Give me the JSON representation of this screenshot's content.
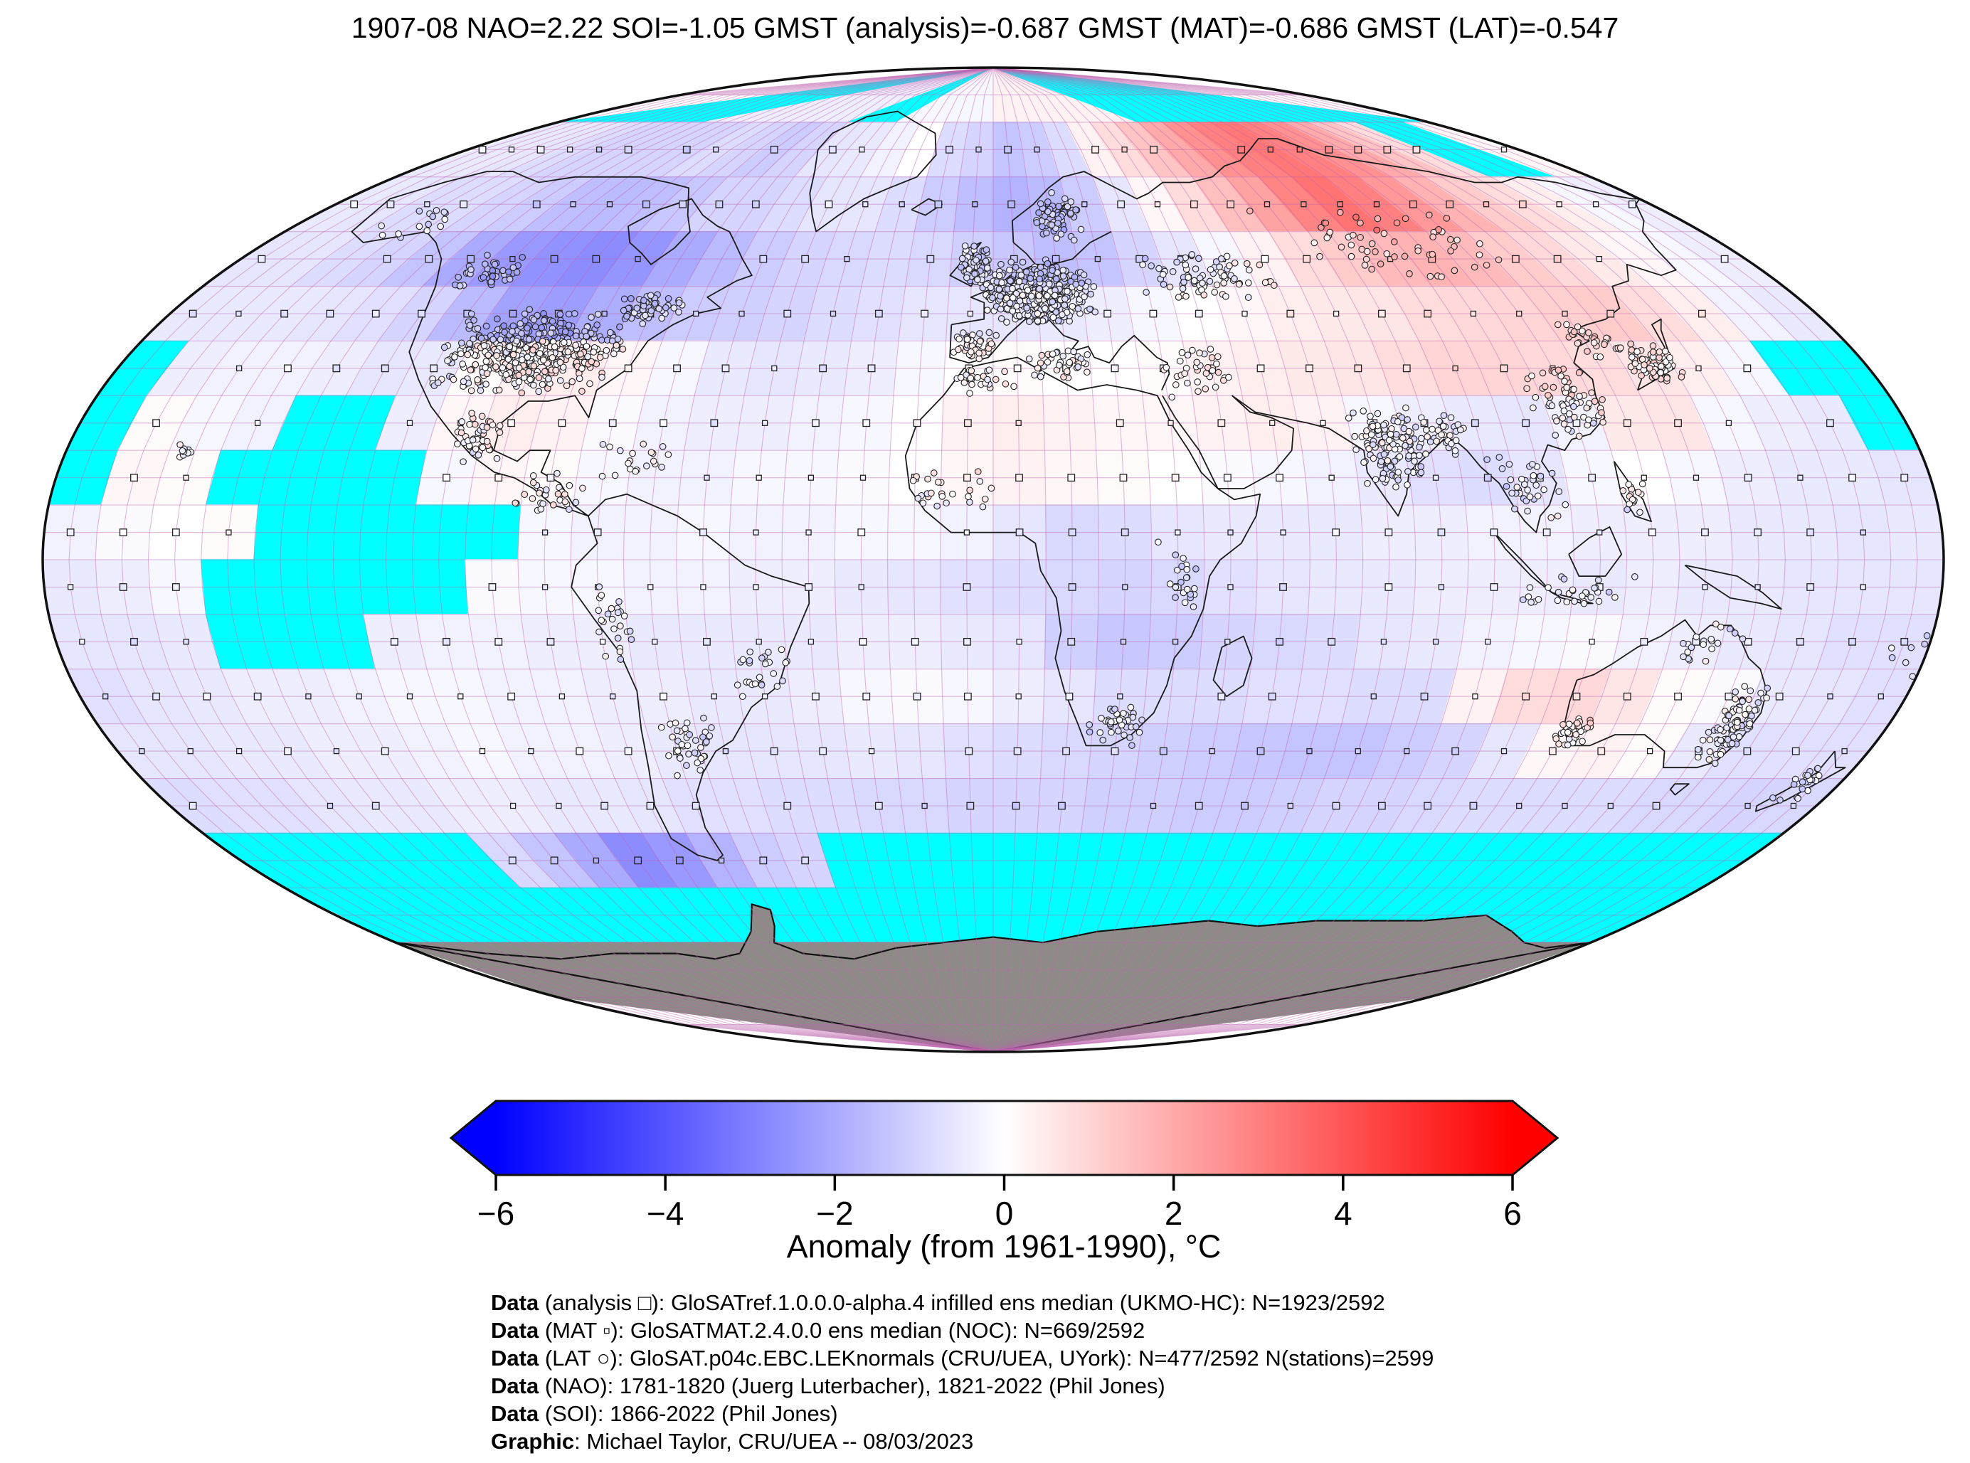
{
  "title": "1907-08 NAO=2.22 SOI=-1.05 GMST (analysis)=-0.687 GMST (MAT)=-0.686 GMST (LAT)=-0.547",
  "map": {
    "missing_color": "#00ffff",
    "land_no_data_color": "#8d8a87",
    "graticule_color": "rgba(190,100,175,0.45)",
    "coast_color": "#1a1a1a",
    "outline_color": "#111111",
    "grid_deg": 10,
    "sub_grid_deg": 5
  },
  "chart_data": {
    "type": "heatmap",
    "title": "1907-08 NAO=2.22 SOI=-1.05 GMST (analysis)=-0.687 GMST (MAT)=-0.686 GMST (LAT)=-0.547",
    "period": "1907-08",
    "indices": {
      "NAO": 2.22,
      "SOI": -1.05
    },
    "gmst": {
      "analysis": -0.687,
      "MAT": -0.686,
      "LAT": -0.547
    },
    "projection": "global pseudo-cylindrical ellipse, 5-degree graticule",
    "grid": {
      "cell_deg": 10,
      "lon_start": -180,
      "lat_start": 90,
      "cols": 36,
      "rows": 18,
      "missing_code": "m",
      "land_no_data_code": "g"
    },
    "colorbar": {
      "label": "Anomaly (from 1961-1990), °C",
      "range": [
        -6,
        6
      ],
      "ticks": [
        -6,
        -4,
        -2,
        0,
        2,
        4,
        6
      ],
      "colormap": "blue-white-red",
      "missing_color": "#00ffff",
      "land_color": "#8d8a87"
    },
    "counts": {
      "analysis": "N=1923/2592",
      "MAT": "N=669/2592",
      "LAT": "N=477/2592",
      "stations": 2599
    },
    "values": [
      [
        "m",
        "m",
        "m",
        "m",
        "m",
        "m",
        -0.4,
        -0.4,
        -0.4,
        -0.4,
        -0.4,
        -0.4,
        "m",
        "m",
        -0.2,
        -0.2,
        -0.2,
        -0.2,
        0.3,
        0.3,
        0.3,
        0.3,
        0.3,
        0.3,
        "m",
        "m",
        "m",
        "m",
        "m",
        "m",
        "m",
        "m",
        "m",
        "m",
        "m",
        "m"
      ],
      [
        -0.5,
        -0.5,
        -0.6,
        -0.8,
        -1.0,
        -1.0,
        -1.0,
        -1.0,
        -0.8,
        -1.0,
        -1.2,
        -1.0,
        -0.6,
        -0.5,
        -0.3,
        0.0,
        -0.8,
        -1.0,
        -1.4,
        -1.2,
        -0.8,
        0.3,
        0.8,
        1.4,
        2.0,
        2.6,
        3.0,
        3.2,
        3.0,
        2.6,
        2.0,
        1.4,
        0.8,
        "m",
        "m",
        0.2
      ],
      [
        -0.5,
        -0.6,
        -0.8,
        -0.8,
        -1.0,
        -1.2,
        -1.5,
        -1.6,
        -1.5,
        -1.3,
        -1.0,
        -1.0,
        -0.8,
        -0.6,
        -0.6,
        -0.8,
        -1.2,
        -1.5,
        -1.8,
        -1.6,
        -1.2,
        -0.6,
        0.2,
        0.8,
        1.5,
        2.2,
        2.9,
        3.3,
        3.0,
        2.4,
        1.8,
        1.2,
        0.8,
        0.4,
        -0.2,
        -0.4
      ],
      [
        -0.6,
        -0.6,
        -0.8,
        -1.0,
        -1.4,
        -2.0,
        -2.4,
        -2.6,
        -2.7,
        -2.5,
        -2.0,
        -1.6,
        -1.2,
        -1.0,
        -0.9,
        -0.8,
        -0.9,
        -1.1,
        -1.3,
        -1.5,
        -1.4,
        -1.0,
        -0.6,
        -0.2,
        0.3,
        0.8,
        1.2,
        1.6,
        1.8,
        1.6,
        1.2,
        0.9,
        0.5,
        0.2,
        -0.2,
        -0.4
      ],
      [
        -0.5,
        -0.5,
        -0.5,
        -0.6,
        -0.7,
        -1.0,
        -1.6,
        -2.2,
        -2.3,
        -1.9,
        -1.5,
        -1.2,
        -1.1,
        -1.0,
        -0.8,
        -0.7,
        -0.6,
        -0.6,
        -0.6,
        -0.5,
        -0.4,
        -0.2,
        0.0,
        0.2,
        0.4,
        0.5,
        0.6,
        0.8,
        0.9,
        1.0,
        1.1,
        1.2,
        0.8,
        0.4,
        -0.3,
        -0.5
      ],
      [
        "m",
        -0.4,
        -0.3,
        -0.3,
        -0.4,
        -0.6,
        -0.5,
        0.1,
        0.3,
        0.4,
        0.2,
        -0.2,
        -0.5,
        -0.6,
        -0.5,
        -0.4,
        -0.2,
        0.0,
        0.1,
        0.0,
        0.0,
        0.1,
        0.3,
        0.4,
        0.5,
        0.6,
        0.8,
        1.0,
        1.0,
        0.9,
        0.8,
        0.6,
        0.4,
        -0.2,
        "m",
        "m"
      ],
      [
        "m",
        0.1,
        -0.2,
        -0.3,
        "m",
        "m",
        -0.4,
        0.2,
        0.4,
        0.3,
        -0.1,
        -0.3,
        -0.4,
        -0.4,
        -0.3,
        -0.2,
        0.0,
        0.3,
        0.4,
        0.3,
        0.2,
        0.2,
        0.3,
        0.4,
        0.3,
        -0.2,
        -0.4,
        -0.5,
        -0.6,
        -0.3,
        0.5,
        0.6,
        -0.2,
        -0.4,
        -0.5,
        "m"
      ],
      [
        "m",
        0.2,
        0.1,
        "m",
        "m",
        "m",
        "m",
        -0.2,
        0.2,
        0.1,
        -0.2,
        -0.3,
        -0.3,
        -0.2,
        -0.2,
        -0.1,
        0.0,
        0.2,
        0.3,
        0.2,
        0.1,
        0.0,
        -0.1,
        -0.2,
        -0.3,
        -0.5,
        -0.7,
        -0.8,
        -0.6,
        -0.2,
        0.0,
        -0.2,
        -0.4,
        -0.5,
        -0.5,
        -0.6
      ],
      [
        -0.3,
        -0.1,
        0.0,
        0.1,
        "m",
        "m",
        "m",
        "m",
        "m",
        -0.2,
        -0.3,
        -0.3,
        -0.2,
        -0.3,
        -0.3,
        -0.2,
        -0.2,
        -0.3,
        -0.6,
        -0.9,
        -0.8,
        -0.6,
        -0.5,
        -0.5,
        -0.5,
        -0.4,
        -0.4,
        -0.3,
        -0.3,
        -0.4,
        -0.4,
        -0.4,
        -0.5,
        -0.5,
        -0.6,
        -0.5
      ],
      [
        -0.5,
        -0.4,
        -0.2,
        "m",
        "m",
        "m",
        "m",
        "m",
        -0.1,
        -0.2,
        -0.2,
        -0.3,
        -0.3,
        -0.4,
        -0.4,
        -0.5,
        -0.6,
        -0.7,
        -0.8,
        -0.9,
        -1.0,
        -0.9,
        -0.7,
        -0.6,
        -0.5,
        -0.5,
        -0.4,
        -0.4,
        -0.4,
        -0.5,
        -0.4,
        -0.5,
        -0.5,
        -0.6,
        -0.6,
        -0.6
      ],
      [
        -0.6,
        -0.6,
        -0.5,
        "m",
        "m",
        "m",
        -0.4,
        -0.3,
        -0.3,
        -0.4,
        -0.4,
        -0.5,
        -0.5,
        -0.5,
        -0.5,
        -0.4,
        -0.4,
        -0.5,
        -0.6,
        -1.1,
        -1.3,
        -1.2,
        -1.0,
        -0.9,
        -0.8,
        -0.6,
        -0.5,
        -0.3,
        -0.2,
        -0.1,
        -0.3,
        -0.4,
        -0.5,
        -0.6,
        -0.7,
        -0.7
      ],
      [
        -0.7,
        -0.6,
        -0.5,
        -0.4,
        -0.4,
        -0.3,
        -0.2,
        -0.2,
        -0.3,
        -0.3,
        -0.4,
        -0.4,
        -0.5,
        -0.5,
        -0.4,
        -0.2,
        -0.1,
        -0.2,
        -0.4,
        -0.6,
        -0.8,
        -0.8,
        -0.8,
        -0.7,
        -0.7,
        -0.8,
        -0.8,
        0.3,
        0.8,
        0.9,
        0.6,
        0.1,
        -0.1,
        -0.5,
        -0.6,
        -0.7
      ],
      [
        -0.6,
        -0.6,
        -0.5,
        -0.5,
        -0.4,
        -0.4,
        -0.3,
        -0.2,
        -0.3,
        -0.3,
        -0.4,
        -0.5,
        -0.6,
        -0.6,
        -0.6,
        -0.5,
        -0.6,
        -0.7,
        -0.8,
        -0.9,
        -1.0,
        -1.1,
        -1.2,
        -1.3,
        -1.4,
        -1.4,
        -1.2,
        -1.0,
        -0.6,
        0.2,
        0.3,
        0.1,
        -0.5,
        -0.7,
        -0.7,
        -0.7
      ],
      [
        -0.8,
        -0.7,
        -0.7,
        -0.6,
        -0.5,
        -0.5,
        -0.4,
        -0.4,
        -0.5,
        -0.5,
        -0.6,
        -0.7,
        -0.7,
        -0.8,
        -0.8,
        -0.9,
        -0.9,
        -1.0,
        -1.0,
        -1.0,
        -1.1,
        -1.1,
        -1.2,
        -1.2,
        -1.1,
        -1.0,
        -1.0,
        -0.9,
        -0.8,
        -0.8,
        -0.8,
        -0.8,
        -0.9,
        -0.9,
        -1.0,
        -0.9
      ],
      [
        "m",
        "m",
        "m",
        "m",
        "m",
        "m",
        -0.9,
        -1.4,
        -2.0,
        -2.7,
        -2.4,
        -1.8,
        -1.2,
        -1.0,
        "m",
        "m",
        "m",
        "m",
        "m",
        "m",
        "m",
        "m",
        "m",
        "m",
        "m",
        "m",
        "m",
        "m",
        "m",
        "m",
        "m",
        "m",
        "m",
        "m",
        "m",
        "m"
      ],
      [
        "m",
        "m",
        "m",
        "m",
        "m",
        "m",
        "m",
        "m",
        "m",
        "m",
        "m",
        "m",
        "m",
        "m",
        "m",
        "m",
        "m",
        "m",
        "m",
        "m",
        "m",
        "m",
        "m",
        "m",
        "m",
        "m",
        "m",
        "m",
        "m",
        "m",
        "m",
        "m",
        "m",
        "m",
        "m",
        "m"
      ],
      [
        "g",
        "g",
        "g",
        "g",
        "g",
        "g",
        "g",
        "g",
        "g",
        "g",
        "g",
        "g",
        "g",
        "g",
        "g",
        "g",
        "g",
        "g",
        "g",
        "g",
        "g",
        "g",
        "g",
        "g",
        "g",
        "g",
        "g",
        "g",
        "g",
        "g",
        "g",
        "g",
        "g",
        "g",
        "g",
        "g"
      ],
      [
        "g",
        "g",
        "g",
        "g",
        "g",
        "g",
        "g",
        "g",
        "g",
        "g",
        "g",
        "g",
        "g",
        "g",
        "g",
        "g",
        "g",
        "g",
        "g",
        "g",
        "g",
        "g",
        "g",
        "g",
        "g",
        "g",
        "g",
        "g",
        "g",
        "g",
        "g",
        "g",
        "g",
        "g",
        "g",
        "g"
      ]
    ]
  },
  "station_clusters": [
    {
      "name": "us",
      "lon": -97,
      "lat": 38,
      "dlon": 20,
      "dlat": 8,
      "n": 520
    },
    {
      "name": "canada-west",
      "lon": -117,
      "lat": 52,
      "dlon": 8,
      "dlat": 4,
      "n": 40
    },
    {
      "name": "canada-east",
      "lon": -76,
      "lat": 46,
      "dlon": 8,
      "dlat": 3,
      "n": 60
    },
    {
      "name": "alaska",
      "lon": -150,
      "lat": 62,
      "dlon": 9,
      "dlat": 4,
      "n": 15
    },
    {
      "name": "mexico",
      "lon": -100,
      "lat": 22,
      "dlon": 6,
      "dlat": 5,
      "n": 45
    },
    {
      "name": "central-america",
      "lon": -85,
      "lat": 12,
      "dlon": 8,
      "dlat": 4,
      "n": 30
    },
    {
      "name": "caribbean",
      "lon": -70,
      "lat": 18,
      "dlon": 8,
      "dlat": 4,
      "n": 20
    },
    {
      "name": "south-america-west",
      "lon": -72,
      "lat": -12,
      "dlon": 4,
      "dlat": 10,
      "n": 25
    },
    {
      "name": "south-america-south",
      "lon": -62,
      "lat": -34,
      "dlon": 7,
      "dlat": 6,
      "n": 40
    },
    {
      "name": "brazil-coast",
      "lon": -45,
      "lat": -20,
      "dlon": 7,
      "dlat": 6,
      "n": 25
    },
    {
      "name": "europe",
      "lon": 10,
      "lat": 49,
      "dlon": 13,
      "dlat": 6,
      "n": 420
    },
    {
      "name": "uk-ireland",
      "lon": -4,
      "lat": 54,
      "dlon": 4,
      "dlat": 4,
      "n": 70
    },
    {
      "name": "iberia",
      "lon": -4,
      "lat": 39,
      "dlon": 5,
      "dlat": 3,
      "n": 55
    },
    {
      "name": "scandinavia",
      "lon": 17,
      "lat": 63,
      "dlon": 7,
      "dlat": 5,
      "n": 70
    },
    {
      "name": "mediterranean",
      "lon": 15,
      "lat": 36,
      "dlon": 10,
      "dlat": 3,
      "n": 40
    },
    {
      "name": "north-africa",
      "lon": -2,
      "lat": 33,
      "dlon": 7,
      "dlat": 3,
      "n": 25
    },
    {
      "name": "west-africa",
      "lon": -8,
      "lat": 12,
      "dlon": 10,
      "dlat": 5,
      "n": 25
    },
    {
      "name": "east-africa",
      "lon": 36,
      "lat": -4,
      "dlon": 5,
      "dlat": 8,
      "n": 22
    },
    {
      "name": "south-africa",
      "lon": 25,
      "lat": -30,
      "dlon": 6,
      "dlat": 4,
      "n": 40
    },
    {
      "name": "middle-east",
      "lon": 42,
      "lat": 34,
      "dlon": 9,
      "dlat": 5,
      "n": 35
    },
    {
      "name": "russia-west",
      "lon": 50,
      "lat": 52,
      "dlon": 18,
      "dlat": 5,
      "n": 80
    },
    {
      "name": "siberia",
      "lon": 95,
      "lat": 58,
      "dlon": 30,
      "dlat": 7,
      "n": 60
    },
    {
      "name": "india",
      "lon": 77,
      "lat": 21,
      "dlon": 8,
      "dlat": 8,
      "n": 140
    },
    {
      "name": "bengal",
      "lon": 88,
      "lat": 23,
      "dlon": 5,
      "dlat": 4,
      "n": 30
    },
    {
      "name": "southeast-asia",
      "lon": 102,
      "lat": 13,
      "dlon": 8,
      "dlat": 7,
      "n": 35
    },
    {
      "name": "indonesia",
      "lon": 112,
      "lat": -6,
      "dlon": 12,
      "dlat": 4,
      "n": 30
    },
    {
      "name": "china-coast",
      "lon": 115,
      "lat": 29,
      "dlon": 8,
      "dlat": 7,
      "n": 70
    },
    {
      "name": "japan",
      "lon": 136,
      "lat": 36,
      "dlon": 6,
      "dlat": 4,
      "n": 85
    },
    {
      "name": "korea-manchuria",
      "lon": 126,
      "lat": 40,
      "dlon": 5,
      "dlat": 4,
      "n": 25
    },
    {
      "name": "philippines",
      "lon": 122,
      "lat": 12,
      "dlon": 3,
      "dlat": 4,
      "n": 15
    },
    {
      "name": "australia-east",
      "lon": 149,
      "lat": -30,
      "dlon": 5,
      "dlat": 8,
      "n": 95
    },
    {
      "name": "australia-southwest",
      "lon": 117,
      "lat": -32,
      "dlon": 4,
      "dlat": 3,
      "n": 35
    },
    {
      "name": "australia-north",
      "lon": 136,
      "lat": -16,
      "dlon": 8,
      "dlat": 5,
      "n": 20
    },
    {
      "name": "new-zealand",
      "lon": 172,
      "lat": -41,
      "dlon": 4,
      "dlat": 4,
      "n": 22
    },
    {
      "name": "hawaii",
      "lon": -157,
      "lat": 20,
      "dlon": 3,
      "dlat": 1.5,
      "n": 9
    },
    {
      "name": "pacific-islands",
      "lon": 178,
      "lat": -17,
      "dlon": 6,
      "dlat": 5,
      "n": 10
    }
  ],
  "footer": {
    "lines": [
      {
        "bold": "Data",
        "rest": " (analysis □): GloSATref.1.0.0.0-alpha.4 infilled ens median (UKMO-HC): N=1923/2592"
      },
      {
        "bold": "Data",
        "rest": " (MAT ▫): GloSATMAT.2.4.0.0 ens median (NOC): N=669/2592"
      },
      {
        "bold": "Data",
        "rest": " (LAT ○): GloSAT.p04c.EBC.LEKnormals (CRU/UEA, UYork): N=477/2592 N(stations)=2599"
      },
      {
        "bold": "Data",
        "rest": " (NAO): 1781-1820 (Juerg Luterbacher), 1821-2022 (Phil Jones)"
      },
      {
        "bold": "Data",
        "rest": " (SOI): 1866-2022 (Phil Jones)"
      },
      {
        "bold": "Graphic",
        "rest": ": Michael Taylor, CRU/UEA -- 08/03/2023"
      }
    ]
  }
}
